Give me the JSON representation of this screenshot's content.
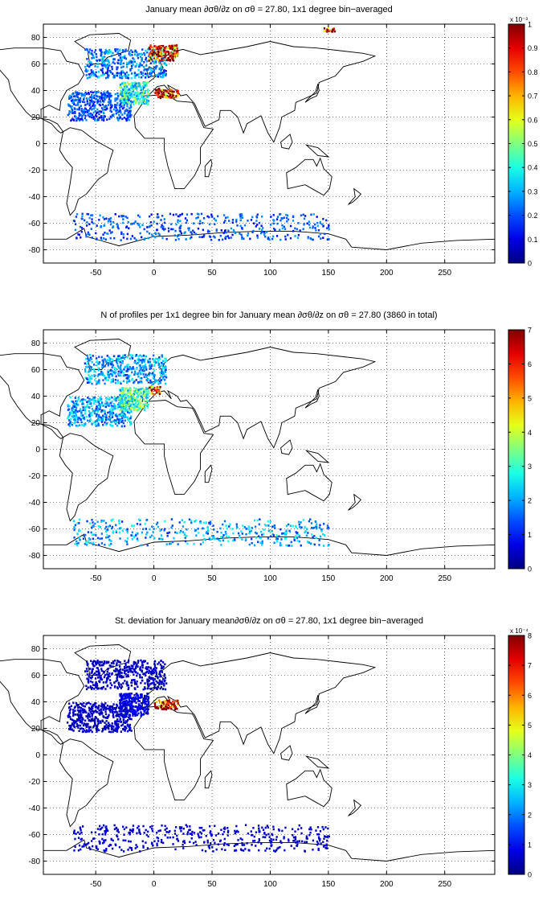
{
  "chart_data": [
    {
      "type": "heatmap",
      "title": "January mean ∂σθ/∂z on σθ = 27.80, 1x1 degree bin−averaged",
      "xlim": [
        -95,
        293
      ],
      "ylim": [
        -90,
        90
      ],
      "xticks": [
        -50,
        0,
        50,
        100,
        150,
        200,
        250
      ],
      "yticks": [
        80,
        60,
        40,
        20,
        0,
        -20,
        -40,
        -60,
        -80
      ],
      "grid": true,
      "colormap": "jet",
      "colorbar": {
        "min": 0,
        "max": 1,
        "ticks": [
          0,
          0.1,
          0.2,
          0.3,
          0.4,
          0.5,
          0.6,
          0.7,
          0.8,
          0.9,
          1
        ],
        "exponent_label": "x 10⁻³"
      },
      "regions": [
        {
          "lon": [
            -75,
            -20
          ],
          "lat": [
            18,
            40
          ],
          "value": 0.2
        },
        {
          "lon": [
            -30,
            -5
          ],
          "lat": [
            30,
            47
          ],
          "value": 0.4
        },
        {
          "lon": [
            -60,
            10
          ],
          "lat": [
            50,
            72
          ],
          "value": 0.25
        },
        {
          "lon": [
            -5,
            20
          ],
          "lat": [
            63,
            75
          ],
          "value": 0.9
        },
        {
          "lon": [
            0,
            20
          ],
          "lat": [
            35,
            42
          ],
          "value": 0.95
        },
        {
          "lon": [
            -70,
            150
          ],
          "lat": [
            -72,
            -52
          ],
          "value": 0.2
        },
        {
          "lon": [
            145,
            155
          ],
          "lat": [
            85,
            88
          ],
          "value": 1.0
        }
      ]
    },
    {
      "type": "heatmap",
      "title": "N of profiles per 1x1 degree bin for January mean ∂σθ/∂z on σθ = 27.80 (3860 in total)",
      "xlim": [
        -95,
        293
      ],
      "ylim": [
        -90,
        90
      ],
      "xticks": [
        -50,
        0,
        50,
        100,
        150,
        200,
        250
      ],
      "yticks": [
        80,
        60,
        40,
        20,
        0,
        -20,
        -40,
        -60,
        -80
      ],
      "grid": true,
      "colormap": "jet",
      "colorbar": {
        "min": 0,
        "max": 7,
        "ticks": [
          0,
          1,
          2,
          3,
          4,
          5,
          6,
          7
        ],
        "exponent_label": ""
      },
      "regions": [
        {
          "lon": [
            -75,
            -20
          ],
          "lat": [
            18,
            40
          ],
          "value": 2
        },
        {
          "lon": [
            -30,
            -5
          ],
          "lat": [
            30,
            47
          ],
          "value": 3
        },
        {
          "lon": [
            -60,
            10
          ],
          "lat": [
            50,
            72
          ],
          "value": 2
        },
        {
          "lon": [
            -5,
            5
          ],
          "lat": [
            42,
            48
          ],
          "value": 6
        },
        {
          "lon": [
            -70,
            150
          ],
          "lat": [
            -72,
            -52
          ],
          "value": 2
        }
      ]
    },
    {
      "type": "heatmap",
      "title": "St. deviation for January mean∂σθ/∂z on σθ = 27.80, 1x1 degree bin−averaged",
      "xlim": [
        -95,
        293
      ],
      "ylim": [
        -90,
        90
      ],
      "xticks": [
        -50,
        0,
        50,
        100,
        150,
        200,
        250
      ],
      "yticks": [
        80,
        60,
        40,
        20,
        0,
        -20,
        -40,
        -60,
        -80
      ],
      "grid": true,
      "colormap": "jet",
      "colorbar": {
        "min": 0,
        "max": 8,
        "ticks": [
          0,
          1,
          2,
          3,
          4,
          5,
          6,
          7,
          8
        ],
        "exponent_label": "x 10⁻⁴"
      },
      "regions": [
        {
          "lon": [
            -75,
            -20
          ],
          "lat": [
            18,
            40
          ],
          "value": 0.5
        },
        {
          "lon": [
            -30,
            -5
          ],
          "lat": [
            30,
            47
          ],
          "value": 0.8
        },
        {
          "lon": [
            -60,
            10
          ],
          "lat": [
            50,
            72
          ],
          "value": 0.5
        },
        {
          "lon": [
            0,
            20
          ],
          "lat": [
            35,
            42
          ],
          "value": 8
        },
        {
          "lon": [
            -70,
            150
          ],
          "lat": [
            -72,
            -52
          ],
          "value": 0.6
        }
      ]
    }
  ]
}
